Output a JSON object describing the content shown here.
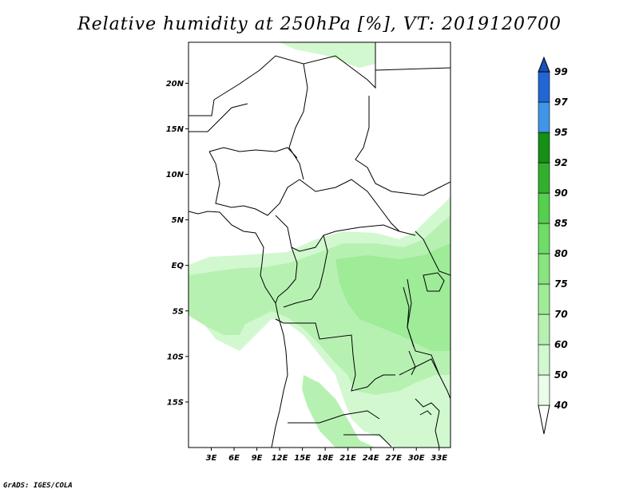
{
  "title": "Relative humidity at 250hPa [%], VT: 2019120700",
  "credit": "GrADS: IGES/COLA",
  "map": {
    "lon_range": [
      0,
      34.5
    ],
    "lat_range": [
      -20,
      24.5
    ],
    "lat_ticks": [
      {
        "value": 20,
        "label": "20N"
      },
      {
        "value": 15,
        "label": "15N"
      },
      {
        "value": 10,
        "label": "10N"
      },
      {
        "value": 5,
        "label": "5N"
      },
      {
        "value": 0,
        "label": "EQ"
      },
      {
        "value": -5,
        "label": "5S"
      },
      {
        "value": -10,
        "label": "10S"
      },
      {
        "value": -15,
        "label": "15S"
      }
    ],
    "lon_ticks": [
      {
        "value": 3,
        "label": "3E"
      },
      {
        "value": 6,
        "label": "6E"
      },
      {
        "value": 9,
        "label": "9E"
      },
      {
        "value": 12,
        "label": "12E"
      },
      {
        "value": 15,
        "label": "15E"
      },
      {
        "value": 18,
        "label": "18E"
      },
      {
        "value": 21,
        "label": "21E"
      },
      {
        "value": 24,
        "label": "24E"
      },
      {
        "value": 27,
        "label": "27E"
      },
      {
        "value": 30,
        "label": "30E"
      },
      {
        "value": 33,
        "label": "33E"
      }
    ]
  },
  "colorbar": {
    "levels": [
      "40",
      "50",
      "60",
      "70",
      "75",
      "80",
      "85",
      "90",
      "92",
      "95",
      "97",
      "99"
    ],
    "colors": [
      "#ffffff",
      "#eafde8",
      "#d2f8cf",
      "#b7f1b2",
      "#9eeb98",
      "#87e47f",
      "#6fdc67",
      "#54cf4e",
      "#32b02d",
      "#159015",
      "#3f96e8",
      "#2266d6",
      "#1a50b8"
    ]
  }
}
